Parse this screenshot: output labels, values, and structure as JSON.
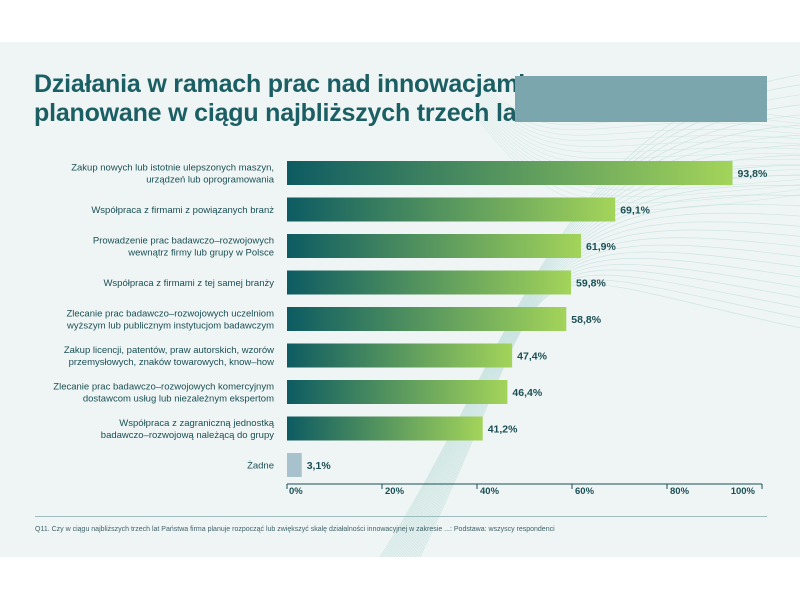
{
  "title_lines": [
    "Działania w ramach prac nad innowacjami",
    "planowane w ciągu najbliższych trzech lat"
  ],
  "footnote": "Q11. Czy w ciągu najbliższych trzech lat Państwa firma planuje rozpocząć lub zwiększyć skalę działalności innowacyjnej w zakresie ...: Podstawa: wszyscy respondenci",
  "colors": {
    "title": "#1b5e63",
    "banner": "#7ba6ae",
    "bar_gradient_start": "#0d5b62",
    "bar_gradient_end": "#a3d45a",
    "bar_none": "#a7c2cc",
    "text": "#1b4f55"
  },
  "chart_data": {
    "type": "bar",
    "orientation": "horizontal",
    "categories": [
      [
        "Zakup nowych lub istotnie ulepszonych maszyn,",
        "urządzeń lub oprogramowania"
      ],
      [
        "Współpraca z firmami z powiązanych branż"
      ],
      [
        "Prowadzenie prac badawczo–rozwojowych",
        "wewnątrz firmy lub grupy w Polsce"
      ],
      [
        "Współpraca z firmami z tej samej branży"
      ],
      [
        "Zlecanie prac badawczo–rozwojowych uczelniom",
        "wyższym lub publicznym instytucjom badawczym"
      ],
      [
        "Zakup licencji, patentów, praw autorskich, wzorów",
        "przemysłowych, znaków towarowych, know–how"
      ],
      [
        "Zlecanie prac badawczo–rozwojowych komercyjnym",
        "dostawcom usług lub niezależnym ekspertom"
      ],
      [
        "Współpraca z zagraniczną jednostką",
        "badawczo–rozwojową należącą do grupy"
      ],
      [
        "Żadne"
      ]
    ],
    "values": [
      93.8,
      69.1,
      61.9,
      59.8,
      58.8,
      47.4,
      46.4,
      41.2,
      3.1
    ],
    "value_labels": [
      "93,8%",
      "69,1%",
      "61,9%",
      "59,8%",
      "58,8%",
      "47,4%",
      "46,4%",
      "41,2%",
      "3,1%"
    ],
    "x_ticks": [
      "0%",
      "20%",
      "40%",
      "60%",
      "80%",
      "100%"
    ],
    "xlim": [
      0,
      100
    ],
    "grid": false,
    "legend": "none"
  }
}
